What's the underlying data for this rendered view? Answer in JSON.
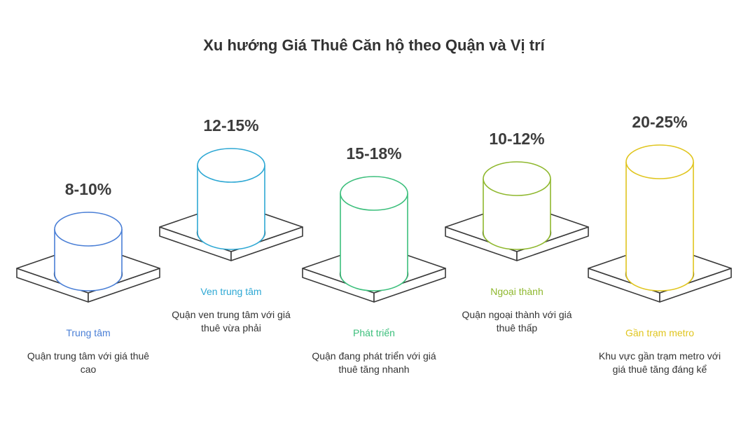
{
  "title": "Xu hướng Giá Thuê Căn hộ theo Quận và Vị trí",
  "chart_data": {
    "type": "bar",
    "title": "Xu hướng Giá Thuê Căn hộ theo Quận và Vị trí",
    "categories": [
      "Trung tâm",
      "Ven trung tâm",
      "Phát triển",
      "Ngoại thành",
      "Gần trạm metro"
    ],
    "value_labels": [
      "8-10%",
      "12-15%",
      "15-18%",
      "10-12%",
      "20-25%"
    ],
    "values_low": [
      8,
      12,
      15,
      10,
      20
    ],
    "values_high": [
      10,
      15,
      18,
      12,
      25
    ],
    "descriptions": [
      "Quận trung tâm với giá thuê cao",
      "Quận ven trung tâm với giá thuê vừa phải",
      "Quận đang phát triển với giá thuê tăng nhanh",
      "Quận ngoại thành với giá thuê thấp",
      "Khu vực gần trạm metro với giá thuê tăng đáng kể"
    ],
    "colors": [
      "#4a7fd6",
      "#2ea8d4",
      "#3cbf7c",
      "#8fb82e",
      "#e0c51d"
    ]
  }
}
